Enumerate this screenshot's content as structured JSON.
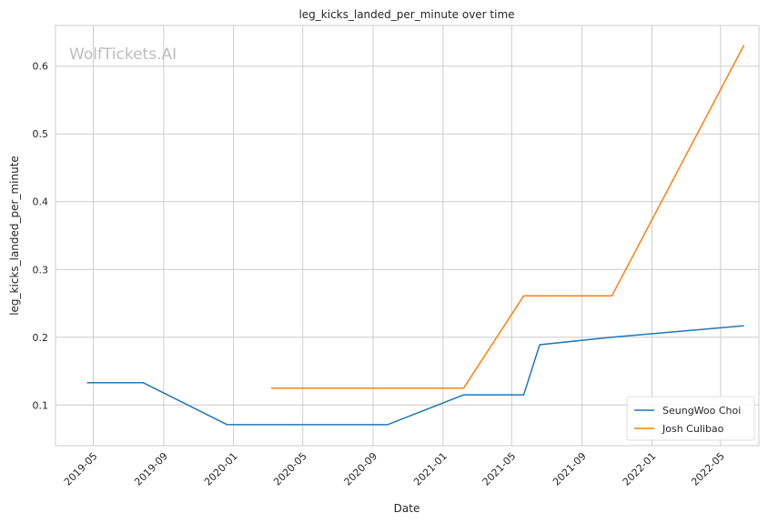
{
  "watermark": "WolfTickets.AI",
  "chart_data": {
    "type": "line",
    "title": "leg_kicks_landed_per_minute over time",
    "xlabel": "Date",
    "ylabel": "leg_kicks_landed_per_minute",
    "x_ticks": [
      "2019-05",
      "2019-09",
      "2020-01",
      "2020-05",
      "2020-09",
      "2021-01",
      "2021-05",
      "2021-09",
      "2022-01",
      "2022-05"
    ],
    "y_ticks": [
      "0.1",
      "0.2",
      "0.3",
      "0.4",
      "0.5",
      "0.6"
    ],
    "xlim": [
      "2019-02-24",
      "2022-07-07"
    ],
    "ylim": [
      0.04,
      0.66
    ],
    "grid": true,
    "legend_position": "lower-right",
    "series": [
      {
        "name": "SeungWoo Choi",
        "color": "#1f77b4",
        "points": [
          {
            "x": "2019-04-20",
            "y": 0.133
          },
          {
            "x": "2019-07-27",
            "y": 0.133
          },
          {
            "x": "2019-12-21",
            "y": 0.071
          },
          {
            "x": "2020-09-26",
            "y": 0.071
          },
          {
            "x": "2021-02-06",
            "y": 0.115
          },
          {
            "x": "2021-05-22",
            "y": 0.115
          },
          {
            "x": "2021-06-19",
            "y": 0.189
          },
          {
            "x": "2021-10-23",
            "y": 0.2
          },
          {
            "x": "2022-06-11",
            "y": 0.217
          }
        ]
      },
      {
        "name": "Josh Culibao",
        "color": "#ff7f0e",
        "points": [
          {
            "x": "2020-03-07",
            "y": 0.125
          },
          {
            "x": "2021-02-06",
            "y": 0.125
          },
          {
            "x": "2021-05-22",
            "y": 0.261
          },
          {
            "x": "2021-10-23",
            "y": 0.261
          },
          {
            "x": "2022-06-11",
            "y": 0.631
          }
        ]
      }
    ]
  }
}
